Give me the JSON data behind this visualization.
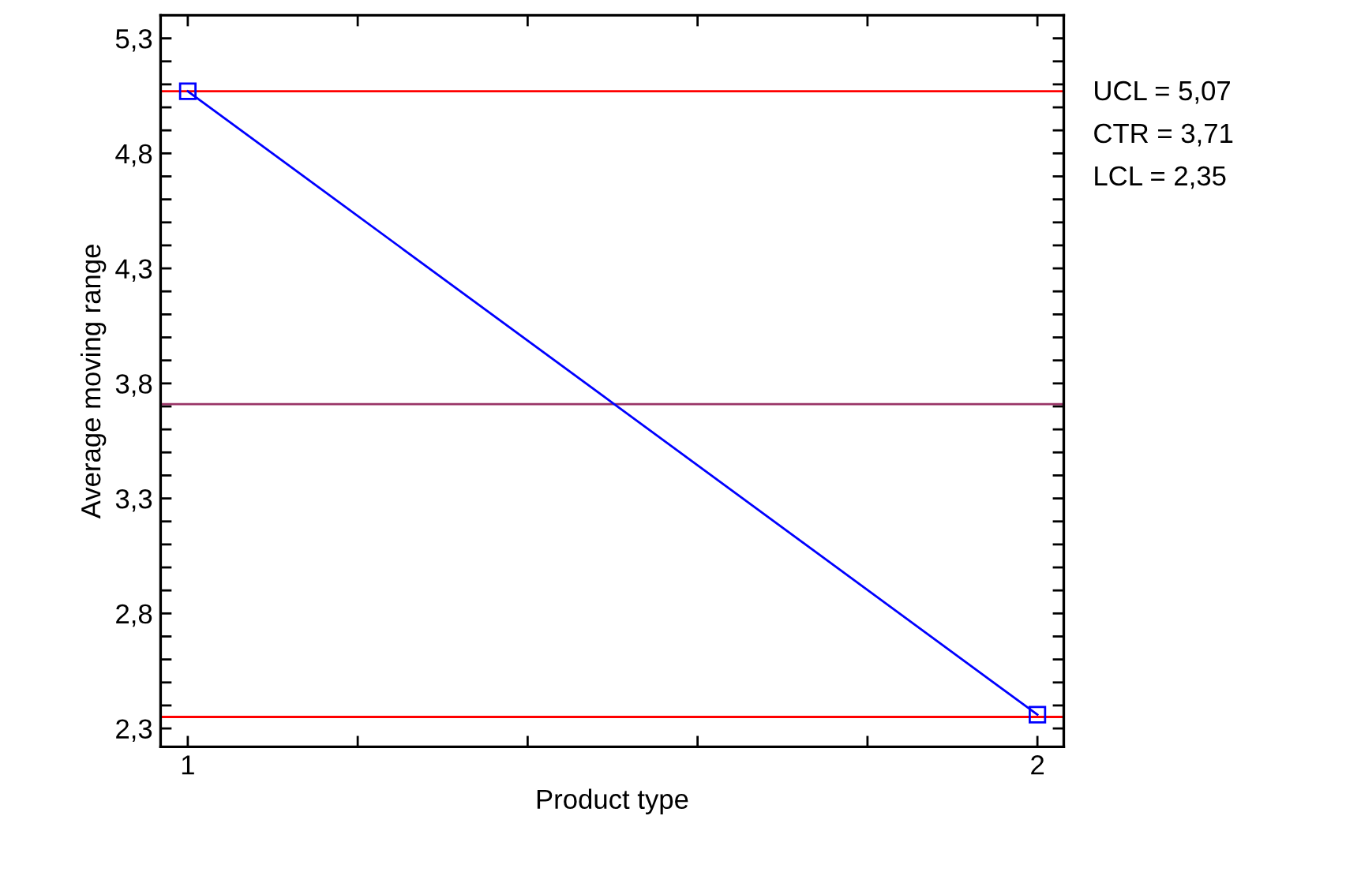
{
  "chart_data": {
    "type": "line",
    "xlabel": "Product type",
    "ylabel": "Average moving range",
    "x": [
      1,
      2
    ],
    "series": [
      {
        "color": "#0000ff",
        "values": [
          5.07,
          2.36
        ]
      }
    ],
    "marker": "square",
    "line_style": "solid",
    "grid": false,
    "legend": false,
    "xlim": [
      0.968,
      2.031
    ],
    "xticks": [
      1,
      {
        "value": 1.2,
        "label": null
      },
      {
        "value": 1.4,
        "label": null
      },
      {
        "value": 1.6,
        "label": null
      },
      {
        "value": 1.8,
        "label": null
      },
      2
    ],
    "ylim": [
      2.22,
      5.4
    ],
    "yticks": [
      {
        "value": 2.3,
        "label": "2,3"
      },
      {
        "value": 2.4,
        "label": null
      },
      {
        "value": 2.5,
        "label": null
      },
      {
        "value": 2.6,
        "label": null
      },
      {
        "value": 2.7,
        "label": null
      },
      {
        "value": 2.8,
        "label": "2,8"
      },
      {
        "value": 2.9,
        "label": null
      },
      {
        "value": 3.0,
        "label": null
      },
      {
        "value": 3.1,
        "label": null
      },
      {
        "value": 3.2,
        "label": null
      },
      {
        "value": 3.3,
        "label": "3,3"
      },
      {
        "value": 3.4,
        "label": null
      },
      {
        "value": 3.5,
        "label": null
      },
      {
        "value": 3.6,
        "label": null
      },
      {
        "value": 3.7,
        "label": null
      },
      {
        "value": 3.8,
        "label": "3,8"
      },
      {
        "value": 3.9,
        "label": null
      },
      {
        "value": 4.0,
        "label": null
      },
      {
        "value": 4.1,
        "label": null
      },
      {
        "value": 4.2,
        "label": null
      },
      {
        "value": 4.3,
        "label": "4,3"
      },
      {
        "value": 4.4,
        "label": null
      },
      {
        "value": 4.5,
        "label": null
      },
      {
        "value": 4.6,
        "label": null
      },
      {
        "value": 4.7,
        "label": null
      },
      {
        "value": 4.8,
        "label": "4,8"
      },
      {
        "value": 4.9,
        "label": null
      },
      {
        "value": 5.0,
        "label": null
      },
      {
        "value": 5.1,
        "label": null
      },
      {
        "value": 5.2,
        "label": null
      },
      {
        "value": 5.3,
        "label": "5,3"
      }
    ],
    "annotations": [
      "UCL = 5,07",
      "CTR = 3,71",
      "LCL = 2,35"
    ],
    "ref_lines": [
      {
        "axis": "y",
        "value": 5.07,
        "color": "#ff0000"
      },
      {
        "axis": "y",
        "value": 3.71,
        "color": "#993366"
      },
      {
        "axis": "y",
        "value": 2.35,
        "color": "#ff0000"
      }
    ]
  }
}
